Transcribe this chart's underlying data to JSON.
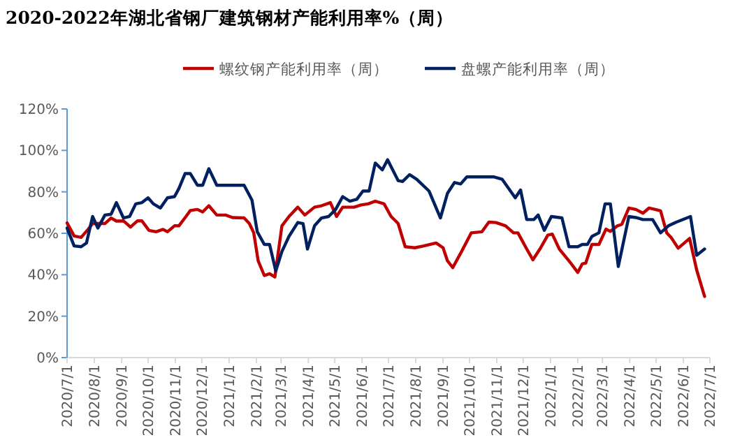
{
  "chart_data": {
    "type": "line",
    "title": "2020-2022年湖北省钢厂建筑钢材产能利用率%（周）",
    "legend": "top",
    "grid": false,
    "marker": "none",
    "line_style": "solid",
    "xlim": [
      "2020-07-01",
      "2022-07-01"
    ],
    "xticks": [
      {
        "value": "2020-07-01",
        "label": "2020/7/1"
      },
      {
        "value": "2020-08-01",
        "label": "2020/8/1"
      },
      {
        "value": "2020-09-01",
        "label": "2020/9/1"
      },
      {
        "value": "2020-10-01",
        "label": "2020/10/1"
      },
      {
        "value": "2020-11-01",
        "label": "2020/11/1"
      },
      {
        "value": "2020-12-01",
        "label": "2020/12/1"
      },
      {
        "value": "2021-01-01",
        "label": "2021/1/1"
      },
      {
        "value": "2021-02-01",
        "label": "2021/2/1"
      },
      {
        "value": "2021-03-01",
        "label": "2021/3/1"
      },
      {
        "value": "2021-04-01",
        "label": "2021/4/1"
      },
      {
        "value": "2021-05-01",
        "label": "2021/5/1"
      },
      {
        "value": "2021-06-01",
        "label": "2021/6/1"
      },
      {
        "value": "2021-07-01",
        "label": "2021/7/1"
      },
      {
        "value": "2021-08-01",
        "label": "2021/8/1"
      },
      {
        "value": "2021-09-01",
        "label": "2021/9/1"
      },
      {
        "value": "2021-10-01",
        "label": "2021/10/1"
      },
      {
        "value": "2021-11-01",
        "label": "2021/11/1"
      },
      {
        "value": "2021-12-01",
        "label": "2021/12/1"
      },
      {
        "value": "2022-01-01",
        "label": "2022/1/1"
      },
      {
        "value": "2022-02-01",
        "label": "2022/2/1"
      },
      {
        "value": "2022-03-01",
        "label": "2022/3/1"
      },
      {
        "value": "2022-04-01",
        "label": "2022/4/1"
      },
      {
        "value": "2022-05-01",
        "label": "2022/5/1"
      },
      {
        "value": "2022-06-01",
        "label": "2022/6/1"
      },
      {
        "value": "2022-07-01",
        "label": "2022/7/1"
      }
    ],
    "ylim": [
      0,
      120
    ],
    "yticks": [
      {
        "value": 0,
        "label": "0%"
      },
      {
        "value": 20,
        "label": "20%"
      },
      {
        "value": 40,
        "label": "40%"
      },
      {
        "value": 60,
        "label": "60%"
      },
      {
        "value": 80,
        "label": "80%"
      },
      {
        "value": 100,
        "label": "100%"
      },
      {
        "value": 120,
        "label": "120%"
      }
    ],
    "series": [
      {
        "name": "螺纹钢产能利用率（周）",
        "color": "#c00000",
        "x": [
          "2020-07-01",
          "2020-07-09",
          "2020-07-17",
          "2020-07-25",
          "2020-07-30",
          "2020-08-13",
          "2020-08-20",
          "2020-08-26",
          "2020-09-03",
          "2020-09-11",
          "2020-09-19",
          "2020-09-24",
          "2020-10-02",
          "2020-10-10",
          "2020-10-18",
          "2020-10-23",
          "2020-10-31",
          "2020-11-05",
          "2020-11-13",
          "2020-11-18",
          "2020-11-26",
          "2020-12-02",
          "2020-12-09",
          "2020-12-18",
          "2020-12-28",
          "2021-01-05",
          "2021-01-18",
          "2021-01-24",
          "2021-01-29",
          "2021-02-03",
          "2021-02-10",
          "2021-02-16",
          "2021-02-22",
          "2021-03-02",
          "2021-03-10",
          "2021-03-20",
          "2021-03-28",
          "2021-04-08",
          "2021-04-16",
          "2021-04-26",
          "2021-05-03",
          "2021-05-10",
          "2021-05-23",
          "2021-05-31",
          "2021-06-08",
          "2021-06-16",
          "2021-06-26",
          "2021-07-04",
          "2021-07-12",
          "2021-07-20",
          "2021-07-31",
          "2021-08-10",
          "2021-08-24",
          "2021-09-01",
          "2021-09-06",
          "2021-09-12",
          "2021-09-22",
          "2021-10-03",
          "2021-10-15",
          "2021-10-23",
          "2021-10-31",
          "2021-11-11",
          "2021-11-20",
          "2021-11-25",
          "2021-12-05",
          "2021-12-12",
          "2021-12-20",
          "2021-12-29",
          "2022-01-03",
          "2022-01-11",
          "2022-01-24",
          "2022-02-01",
          "2022-02-06",
          "2022-02-10",
          "2022-02-17",
          "2022-02-25",
          "2022-03-05",
          "2022-03-10",
          "2022-03-18",
          "2022-03-23",
          "2022-03-31",
          "2022-04-08",
          "2022-04-16",
          "2022-04-23",
          "2022-04-30",
          "2022-05-06",
          "2022-05-13",
          "2022-05-18",
          "2022-05-26",
          "2022-06-02",
          "2022-06-08",
          "2022-06-16",
          "2022-06-25"
        ],
        "values": [
          65,
          58.7,
          58,
          62,
          64.7,
          64.7,
          67.4,
          65.9,
          66,
          63,
          66,
          66,
          61.4,
          60.7,
          61.9,
          60.7,
          63.6,
          63.6,
          68.1,
          71,
          71.5,
          70.3,
          73.3,
          68.8,
          68.8,
          67.6,
          67.4,
          64.7,
          60.2,
          46.7,
          39.6,
          40.5,
          38.9,
          63.6,
          68.1,
          72.6,
          68.8,
          72.6,
          73.3,
          74.8,
          68.1,
          72.6,
          72.6,
          73.7,
          74.2,
          75.5,
          74.2,
          68.1,
          64.7,
          53.5,
          53,
          53.9,
          55.3,
          53,
          46.7,
          43.4,
          51.2,
          60.2,
          60.7,
          65.4,
          65.2,
          63.6,
          60.2,
          60.2,
          52.4,
          47.2,
          52.4,
          59.1,
          59.6,
          52.4,
          45.6,
          41.1,
          45.2,
          45.6,
          54.6,
          54.6,
          62,
          60.9,
          63.6,
          64.3,
          72.2,
          71.5,
          69.7,
          72.2,
          71.5,
          70.8,
          60.2,
          58,
          52.8,
          55.3,
          57.5,
          42.3,
          29.5
        ]
      },
      {
        "name": "盘螺产能利用率（周）",
        "color": "#002060",
        "x": [
          "2020-07-01",
          "2020-07-09",
          "2020-07-17",
          "2020-07-23",
          "2020-07-30",
          "2020-08-05",
          "2020-08-13",
          "2020-08-20",
          "2020-08-26",
          "2020-09-03",
          "2020-09-10",
          "2020-09-17",
          "2020-09-24",
          "2020-10-01",
          "2020-10-07",
          "2020-10-15",
          "2020-10-23",
          "2020-10-31",
          "2020-11-05",
          "2020-11-12",
          "2020-11-18",
          "2020-11-26",
          "2020-12-02",
          "2020-12-09",
          "2020-12-18",
          "2021-01-18",
          "2021-01-27",
          "2021-02-02",
          "2021-02-10",
          "2021-02-16",
          "2021-02-23",
          "2021-03-02",
          "2021-03-10",
          "2021-03-20",
          "2021-03-26",
          "2021-03-31",
          "2021-04-08",
          "2021-04-16",
          "2021-04-24",
          "2021-05-02",
          "2021-05-10",
          "2021-05-18",
          "2021-05-26",
          "2021-06-02",
          "2021-06-09",
          "2021-06-16",
          "2021-06-24",
          "2021-06-30",
          "2021-07-12",
          "2021-07-17",
          "2021-07-25",
          "2021-08-02",
          "2021-08-16",
          "2021-08-29",
          "2021-09-06",
          "2021-09-14",
          "2021-09-21",
          "2021-09-28",
          "2021-10-29",
          "2021-11-07",
          "2021-11-22",
          "2021-11-28",
          "2021-12-05",
          "2021-12-13",
          "2021-12-18",
          "2021-12-25",
          "2022-01-02",
          "2022-01-14",
          "2022-01-22",
          "2022-02-01",
          "2022-02-06",
          "2022-02-12",
          "2022-02-17",
          "2022-02-25",
          "2022-03-04",
          "2022-03-10",
          "2022-03-19",
          "2022-03-31",
          "2022-04-08",
          "2022-04-16",
          "2022-04-27",
          "2022-05-06",
          "2022-05-15",
          "2022-05-23",
          "2022-06-09",
          "2022-06-16",
          "2022-06-25"
        ],
        "values": [
          62.5,
          53.9,
          53.5,
          55.3,
          68.1,
          62.5,
          68.8,
          69.2,
          74.8,
          67.4,
          68.1,
          74.2,
          74.8,
          77.1,
          74.2,
          72.2,
          77.1,
          77.7,
          81.6,
          88.8,
          88.8,
          83.2,
          83.2,
          91.2,
          83.2,
          83.2,
          76,
          60.7,
          54.6,
          54.6,
          41.8,
          51.2,
          58.5,
          65.2,
          64.7,
          52.4,
          63.6,
          67.4,
          68.1,
          71.5,
          77.7,
          75.5,
          76.4,
          80.4,
          80.4,
          93.9,
          90.6,
          95.5,
          85.4,
          85,
          88.3,
          86.1,
          80.4,
          67.4,
          79.3,
          84.5,
          83.8,
          87.2,
          87.2,
          86.1,
          77.1,
          80.9,
          66.6,
          66.6,
          68.8,
          61.4,
          68.1,
          67.4,
          53.5,
          53.5,
          54.6,
          54.6,
          58.5,
          60.2,
          74.2,
          74.2,
          44,
          68.1,
          67.6,
          66.6,
          66.6,
          60.2,
          63.6,
          65.2,
          68.1,
          49.4,
          52.4
        ]
      }
    ]
  }
}
